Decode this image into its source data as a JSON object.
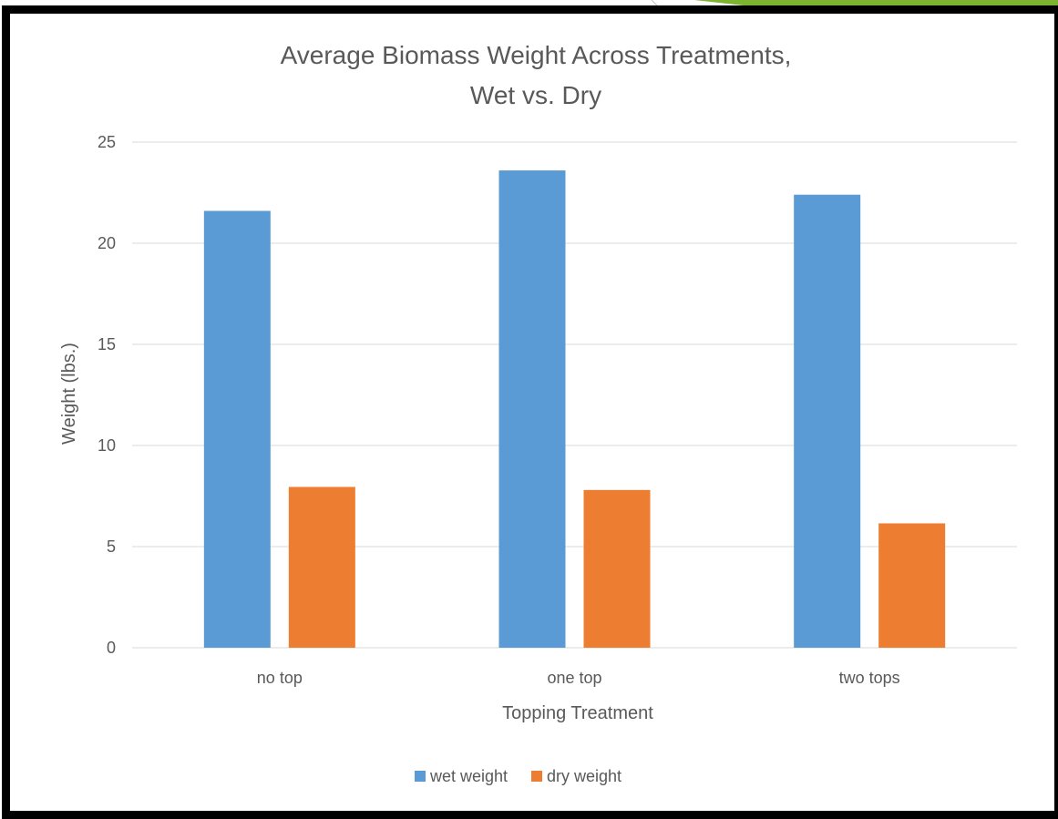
{
  "chart_data": {
    "type": "bar",
    "title": "Average Biomass Weight Across Treatments, Wet vs. Dry",
    "title_lines": [
      "Average Biomass Weight Across Treatments,",
      "Wet vs. Dry"
    ],
    "xlabel": "Topping Treatment",
    "ylabel": "Weight (lbs.)",
    "categories": [
      "no top",
      "one top",
      "two tops"
    ],
    "series": [
      {
        "name": "wet weight",
        "values": [
          21.6,
          23.6,
          22.4
        ],
        "color": "#5B9BD5"
      },
      {
        "name": "dry weight",
        "values": [
          7.95,
          7.8,
          6.15
        ],
        "color": "#ED7D31"
      }
    ],
    "ylim": [
      0,
      25
    ],
    "yticks": [
      0,
      5,
      10,
      15,
      20,
      25
    ],
    "grid": true,
    "legend_position": "bottom"
  },
  "colors": {
    "frame": "#000000",
    "gridline": "#D9D9D9",
    "text": "#595959",
    "slide_accent": "#7CB32F"
  }
}
